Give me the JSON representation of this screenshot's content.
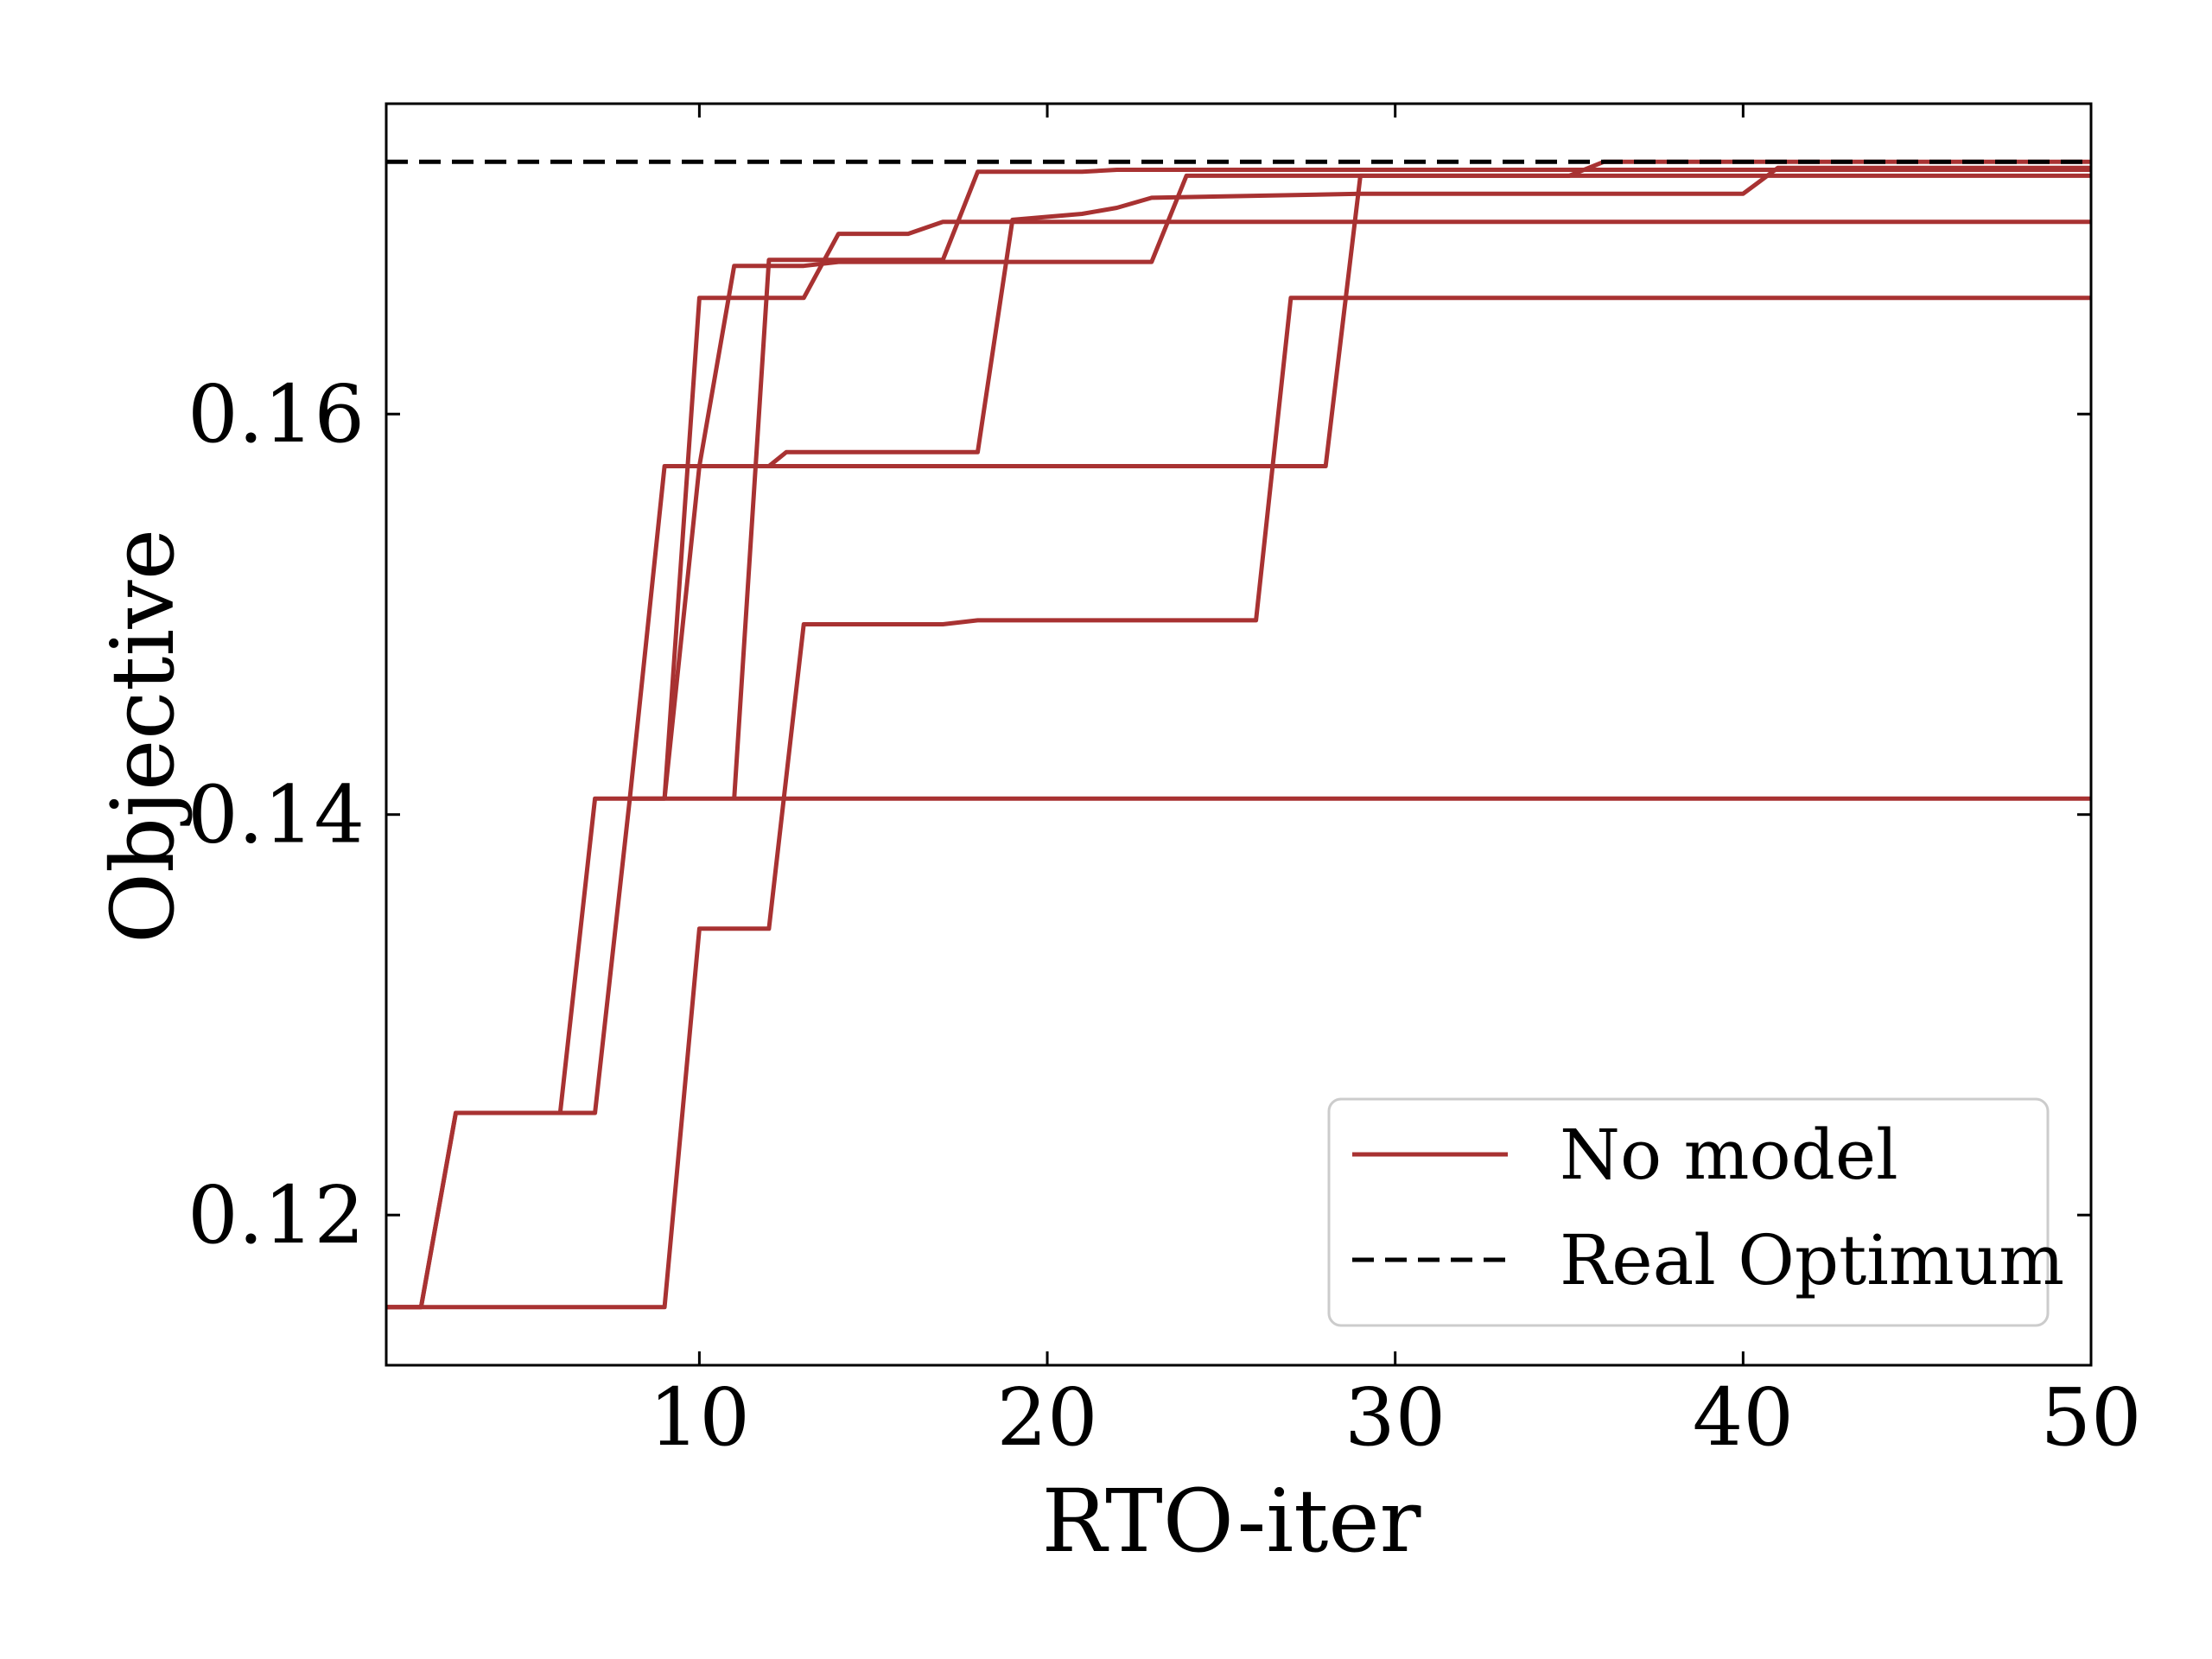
{
  "chart_data": {
    "type": "line",
    "xlabel": "RTO-iter",
    "ylabel": "Objective",
    "xlim": [
      1,
      50
    ],
    "ylim": [
      0.1125,
      0.1755
    ],
    "xticks": [
      10,
      20,
      30,
      40,
      50
    ],
    "yticks": [
      0.12,
      0.14,
      0.16
    ],
    "xtick_labels": [
      "10",
      "20",
      "30",
      "40",
      "50"
    ],
    "ytick_labels": [
      "0.12",
      "0.14",
      "0.16"
    ],
    "grid": false,
    "legend_position": "bottom-right",
    "legend": [
      "No model",
      "Real Optimum"
    ],
    "colors": {
      "no_model": "#a83232",
      "real_optimum": "#000000"
    },
    "reference_line": {
      "name": "Real Optimum",
      "y": 0.1726
    },
    "series": [
      {
        "points": [
          [
            1,
            0.1154
          ],
          [
            2,
            0.1154
          ],
          [
            3,
            0.1251
          ],
          [
            6,
            0.1251
          ],
          [
            7,
            0.1408
          ],
          [
            11,
            0.1408
          ],
          [
            50,
            0.1408
          ]
        ]
      },
      {
        "points": [
          [
            1,
            0.1154
          ],
          [
            2,
            0.1154
          ],
          [
            3,
            0.1251
          ],
          [
            7,
            0.1251
          ],
          [
            8,
            0.1408
          ],
          [
            9,
            0.1408
          ],
          [
            10,
            0.1658
          ],
          [
            13,
            0.1658
          ],
          [
            14,
            0.169
          ],
          [
            16,
            0.169
          ],
          [
            17,
            0.1696
          ],
          [
            22,
            0.1696
          ],
          [
            50,
            0.1696
          ]
        ]
      },
      {
        "points": [
          [
            1,
            0.1154
          ],
          [
            9,
            0.1154
          ],
          [
            10,
            0.1343
          ],
          [
            12,
            0.1343
          ],
          [
            13,
            0.1495
          ],
          [
            17,
            0.1495
          ],
          [
            18,
            0.1497
          ],
          [
            26,
            0.1497
          ],
          [
            27,
            0.1658
          ],
          [
            50,
            0.1658
          ]
        ]
      },
      {
        "points": [
          [
            9,
            0.1408
          ],
          [
            10,
            0.1574
          ],
          [
            28,
            0.1574
          ],
          [
            29,
            0.1719
          ],
          [
            50,
            0.1719
          ]
        ]
      },
      {
        "points": [
          [
            8,
            0.1408
          ],
          [
            9,
            0.1574
          ],
          [
            12,
            0.1574
          ],
          [
            12.5,
            0.1581
          ],
          [
            18,
            0.1581
          ],
          [
            19,
            0.1697
          ],
          [
            21,
            0.17
          ],
          [
            22,
            0.1703
          ],
          [
            23,
            0.1708
          ],
          [
            29,
            0.171
          ],
          [
            40,
            0.171
          ],
          [
            41,
            0.1723
          ],
          [
            50,
            0.1723
          ]
        ]
      },
      {
        "points": [
          [
            10,
            0.1574
          ],
          [
            11,
            0.1674
          ],
          [
            13,
            0.1674
          ],
          [
            14,
            0.1676
          ],
          [
            23,
            0.1676
          ],
          [
            24,
            0.1719
          ],
          [
            35,
            0.1719
          ],
          [
            36,
            0.1726
          ],
          [
            50,
            0.1726
          ]
        ]
      },
      {
        "points": [
          [
            11,
            0.1408
          ],
          [
            12,
            0.1677
          ],
          [
            17,
            0.1677
          ],
          [
            18,
            0.1721
          ],
          [
            21,
            0.1721
          ],
          [
            22,
            0.1722
          ],
          [
            50,
            0.1722
          ]
        ]
      }
    ]
  }
}
